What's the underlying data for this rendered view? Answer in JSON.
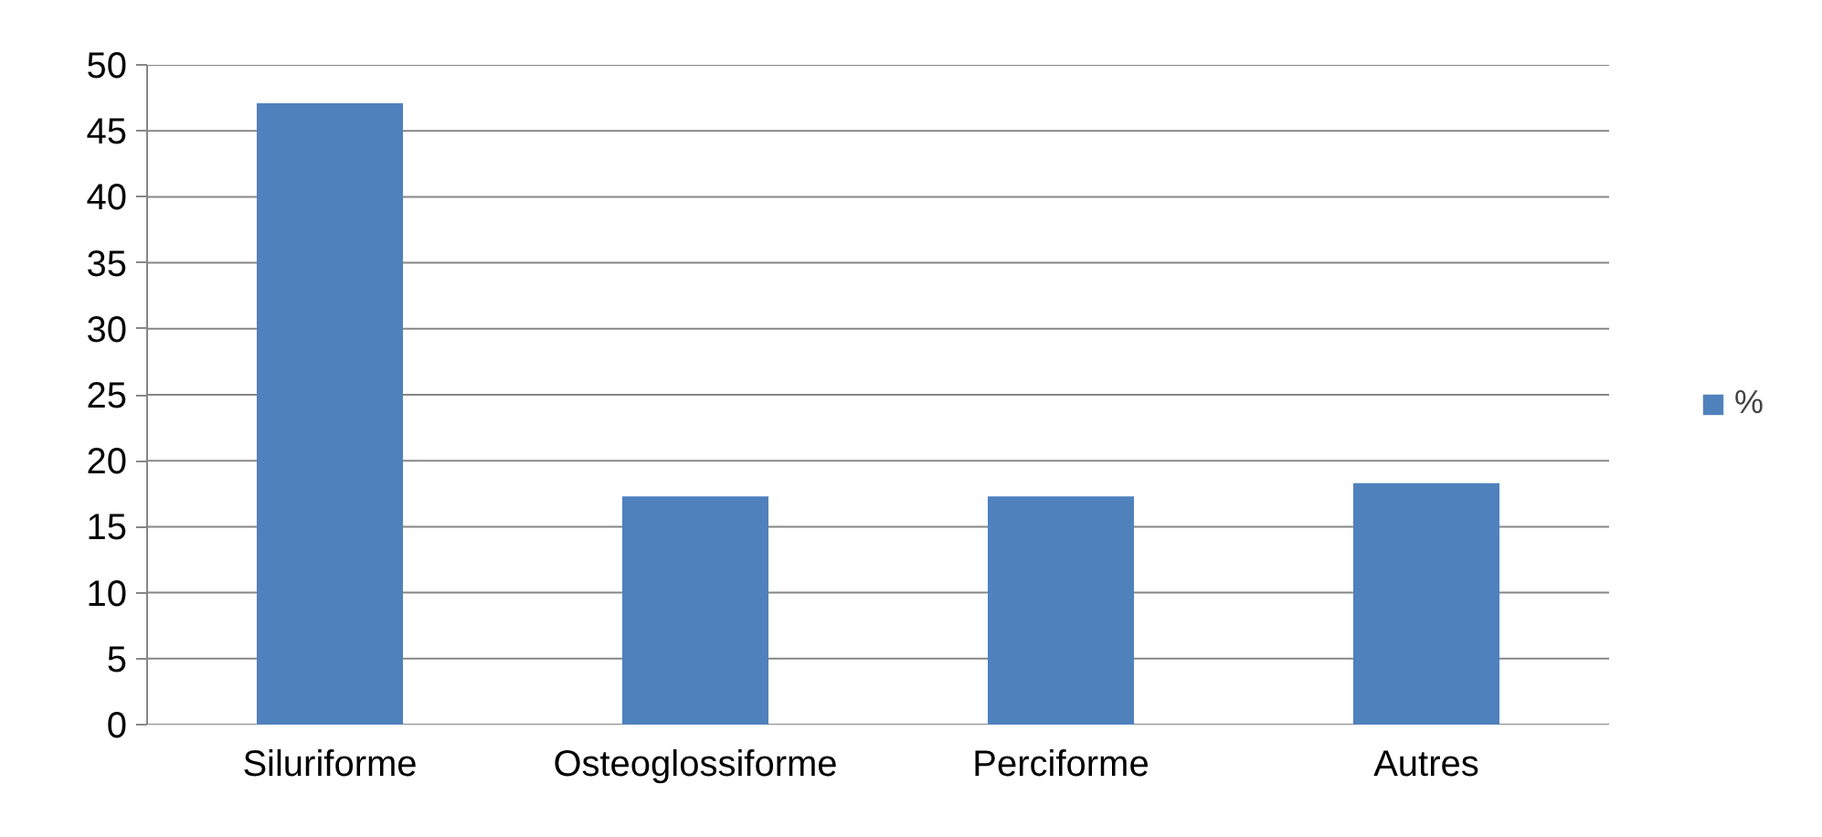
{
  "chart_data": {
    "type": "bar",
    "categories": [
      "Siluriforme",
      "Osteoglossiforme",
      "Perciforme",
      "Autres"
    ],
    "series": [
      {
        "name": "%",
        "color": "#4f81bd",
        "values": [
          47.1,
          17.3,
          17.3,
          18.3
        ]
      }
    ],
    "ylim": [
      0,
      50
    ],
    "yticks": [
      0,
      5,
      10,
      15,
      20,
      25,
      30,
      35,
      40,
      45,
      50
    ],
    "grid": "y",
    "legend": "right"
  }
}
